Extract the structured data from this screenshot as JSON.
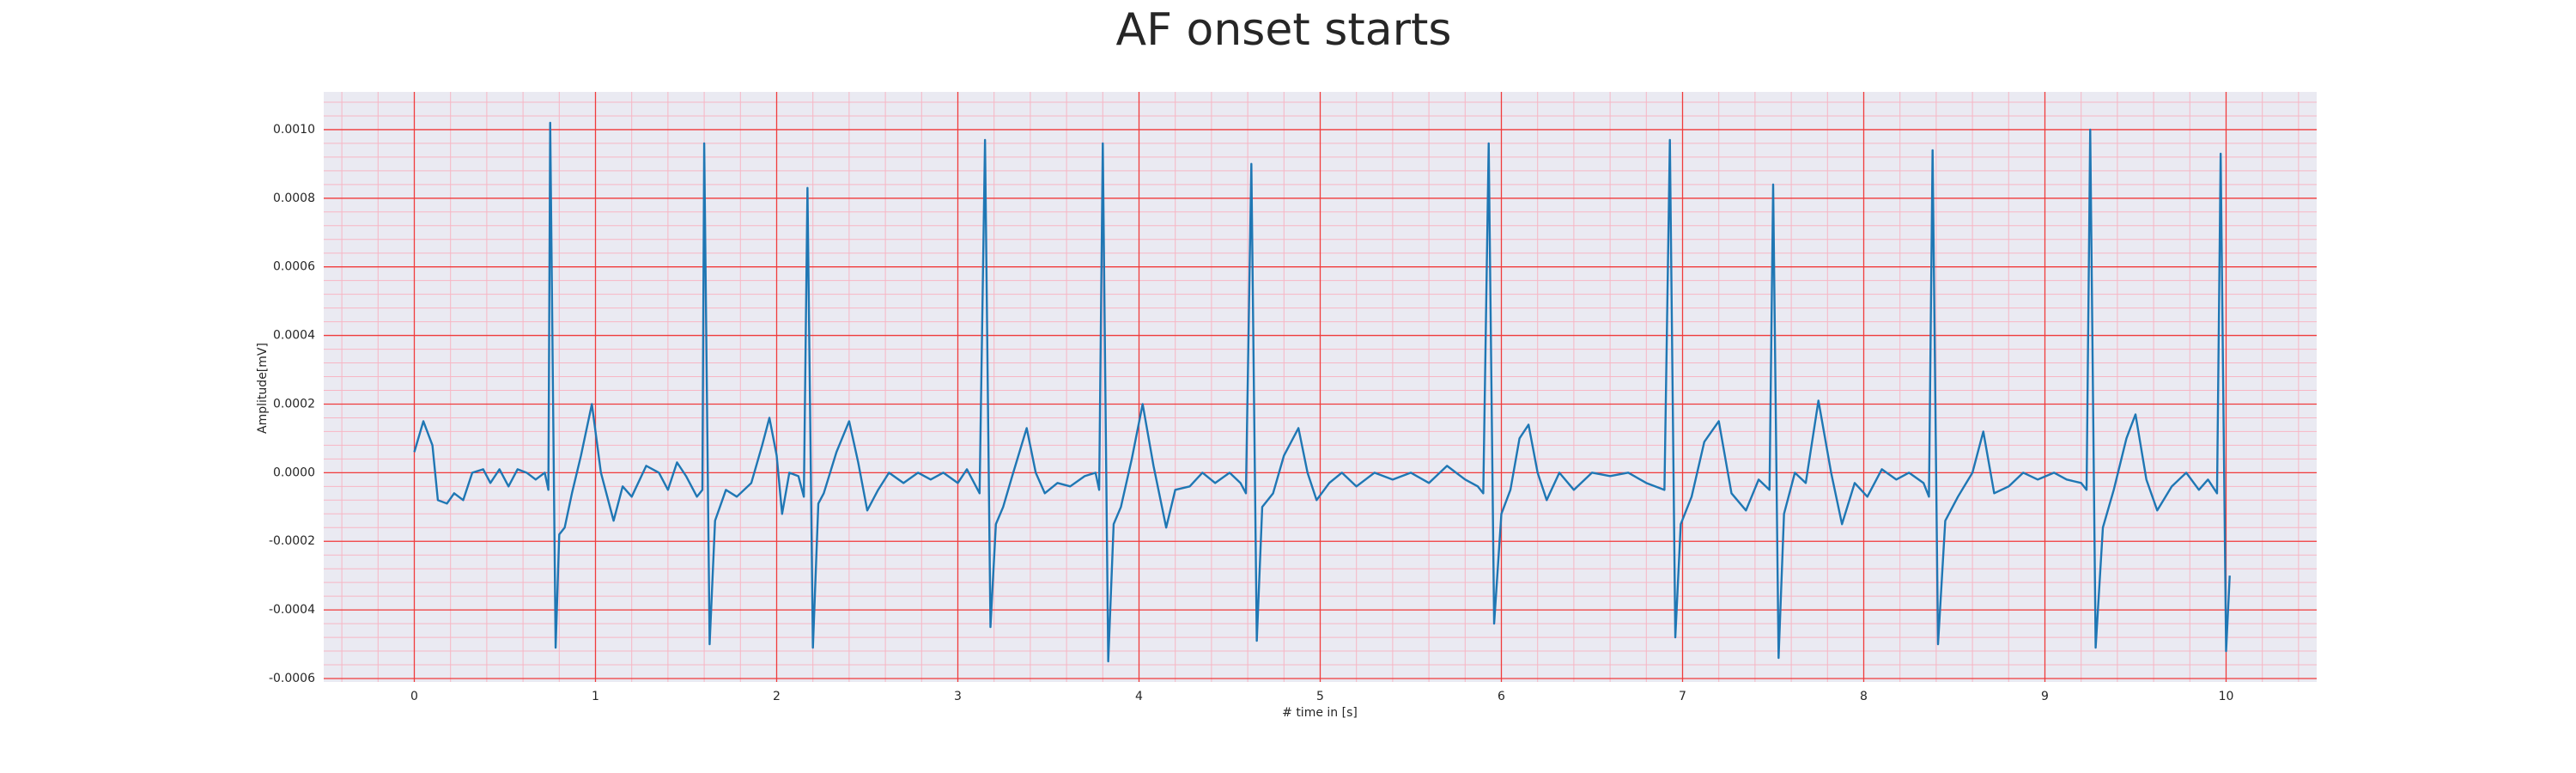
{
  "chart_data": {
    "type": "line",
    "title": "AF onset starts",
    "xlabel": "# time in [s]",
    "ylabel": "Amplitude[mV]",
    "x": [
      0,
      0.05,
      0.1,
      0.13,
      0.18,
      0.22,
      0.27,
      0.32,
      0.38,
      0.42,
      0.47,
      0.52,
      0.57,
      0.62,
      0.67,
      0.72,
      0.74,
      0.75,
      0.78,
      0.8,
      0.83,
      0.87,
      0.92,
      0.98,
      1.03,
      1.1,
      1.15,
      1.2,
      1.28,
      1.35,
      1.4,
      1.45,
      1.5,
      1.56,
      1.59,
      1.6,
      1.63,
      1.66,
      1.72,
      1.78,
      1.86,
      1.92,
      1.96,
      2.0,
      2.03,
      2.07,
      2.12,
      2.15,
      2.17,
      2.2,
      2.23,
      2.26,
      2.33,
      2.4,
      2.45,
      2.5,
      2.56,
      2.62,
      2.7,
      2.78,
      2.85,
      2.92,
      3.0,
      3.05,
      3.12,
      3.15,
      3.18,
      3.21,
      3.25,
      3.3,
      3.38,
      3.43,
      3.48,
      3.55,
      3.62,
      3.7,
      3.76,
      3.78,
      3.8,
      3.83,
      3.86,
      3.9,
      3.96,
      4.02,
      4.08,
      4.15,
      4.2,
      4.28,
      4.35,
      4.42,
      4.5,
      4.56,
      4.59,
      4.62,
      4.65,
      4.68,
      4.74,
      4.8,
      4.88,
      4.93,
      4.98,
      5.05,
      5.12,
      5.2,
      5.3,
      5.4,
      5.5,
      5.6,
      5.7,
      5.8,
      5.87,
      5.9,
      5.93,
      5.96,
      6.0,
      6.05,
      6.1,
      6.15,
      6.2,
      6.25,
      6.32,
      6.4,
      6.5,
      6.6,
      6.7,
      6.8,
      6.9,
      6.93,
      6.96,
      6.99,
      7.05,
      7.12,
      7.2,
      7.27,
      7.35,
      7.42,
      7.48,
      7.5,
      7.53,
      7.56,
      7.62,
      7.68,
      7.75,
      7.82,
      7.88,
      7.95,
      8.02,
      8.1,
      8.18,
      8.25,
      8.33,
      8.36,
      8.38,
      8.41,
      8.45,
      8.52,
      8.6,
      8.66,
      8.72,
      8.8,
      8.88,
      8.96,
      9.05,
      9.12,
      9.2,
      9.23,
      9.25,
      9.28,
      9.32,
      9.38,
      9.45,
      9.5,
      9.56,
      9.62,
      9.7,
      9.78,
      9.85,
      9.9,
      9.95,
      9.97,
      10.0,
      10.02
    ],
    "series": [
      {
        "name": "Amplitude",
        "color": "#1f77b4",
        "values": [
          6e-05,
          0.00015,
          8e-05,
          -8e-05,
          -9e-05,
          -6e-05,
          -8e-05,
          0,
          1e-05,
          -3e-05,
          1e-05,
          -4e-05,
          1e-05,
          0,
          -2e-05,
          0,
          -5e-05,
          0.00102,
          -0.00051,
          -0.00018,
          -0.00016,
          -6e-05,
          5e-05,
          0.0002,
          0,
          -0.00014,
          -4e-05,
          -7e-05,
          2e-05,
          0,
          -5e-05,
          3e-05,
          -1e-05,
          -7e-05,
          -5e-05,
          0.00096,
          -0.0005,
          -0.00014,
          -5e-05,
          -7e-05,
          -3e-05,
          8e-05,
          0.00016,
          5e-05,
          -0.00012,
          0,
          -1e-05,
          -7e-05,
          0.00083,
          -0.00051,
          -9e-05,
          -6e-05,
          6e-05,
          0.00015,
          3e-05,
          -0.00011,
          -5e-05,
          0,
          -3e-05,
          0,
          -2e-05,
          0,
          -3e-05,
          1e-05,
          -6e-05,
          0.00097,
          -0.00045,
          -0.00015,
          -0.0001,
          -1e-05,
          0.00013,
          0,
          -6e-05,
          -3e-05,
          -4e-05,
          -1e-05,
          0,
          -5e-05,
          0.00096,
          -0.00055,
          -0.00015,
          -0.0001,
          4e-05,
          0.0002,
          2e-05,
          -0.00016,
          -5e-05,
          -4e-05,
          0,
          -3e-05,
          0,
          -3e-05,
          -6e-05,
          0.0009,
          -0.00049,
          -0.0001,
          -6e-05,
          5e-05,
          0.00013,
          0,
          -8e-05,
          -3e-05,
          0,
          -4e-05,
          0,
          -2e-05,
          0,
          -3e-05,
          2e-05,
          -2e-05,
          -4e-05,
          -6e-05,
          0.00096,
          -0.00044,
          -0.00012,
          -5e-05,
          0.0001,
          0.00014,
          0,
          -8e-05,
          0,
          -5e-05,
          0,
          -1e-05,
          0,
          -3e-05,
          -5e-05,
          0.00097,
          -0.00048,
          -0.00015,
          -7e-05,
          9e-05,
          0.00015,
          -6e-05,
          -0.00011,
          -2e-05,
          -5e-05,
          0.00084,
          -0.00054,
          -0.00012,
          0,
          -3e-05,
          0.00021,
          0,
          -0.00015,
          -3e-05,
          -7e-05,
          1e-05,
          -2e-05,
          0,
          -3e-05,
          -7e-05,
          0.00094,
          -0.0005,
          -0.00014,
          -7e-05,
          0,
          0.00012,
          -6e-05,
          -4e-05,
          0,
          -2e-05,
          0,
          -2e-05,
          -3e-05,
          -5e-05,
          0.001,
          -0.00051,
          -0.00016,
          -5e-05,
          0.0001,
          0.00017,
          -2e-05,
          -0.00011,
          -4e-05,
          0,
          -5e-05,
          -2e-05,
          -6e-05,
          0.00093,
          -0.00052,
          -0.0003
        ]
      }
    ],
    "xlim": [
      -0.5,
      10.5
    ],
    "ylim": [
      -0.00061,
      0.00111
    ],
    "xticks": [
      0,
      1,
      2,
      3,
      4,
      5,
      6,
      7,
      8,
      9,
      10
    ],
    "yticks": [
      {
        "value": -0.0006,
        "label": "-0.0006"
      },
      {
        "value": -0.0004,
        "label": "-0.0004"
      },
      {
        "value": -0.0002,
        "label": "-0.0002"
      },
      {
        "value": 0,
        "label": "0.0000"
      },
      {
        "value": 0.0002,
        "label": "0.0002"
      },
      {
        "value": 0.0004,
        "label": "0.0004"
      },
      {
        "value": 0.0006,
        "label": "0.0006"
      },
      {
        "value": 0.0008,
        "label": "0.0008"
      },
      {
        "value": 0.001,
        "label": "0.0010"
      }
    ],
    "grid": true,
    "grid_color": "#f03c3c",
    "minor_grid_color": "#f7b6c4",
    "background": "#eaeaf2"
  }
}
